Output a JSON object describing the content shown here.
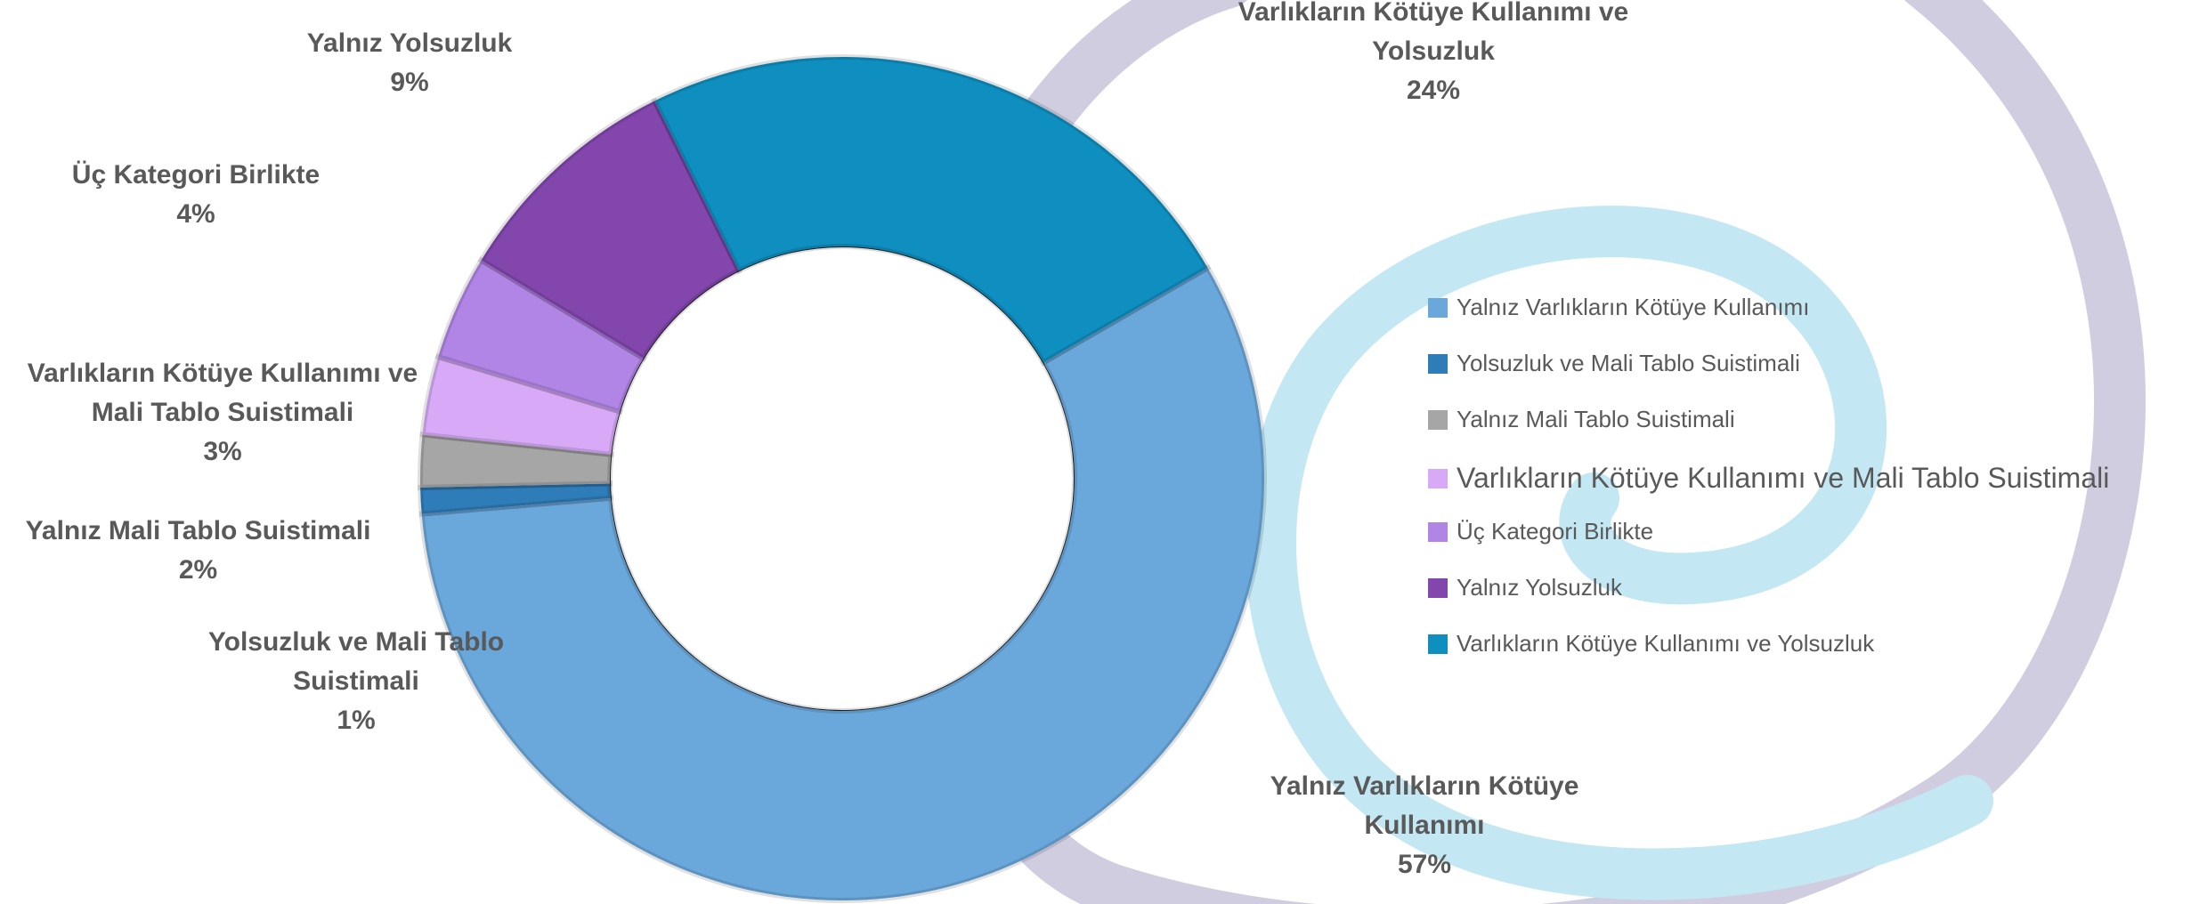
{
  "chart_data": {
    "type": "donut",
    "categories": [
      "Yalnız Varlıkların Kötüye Kullanımı",
      "Yolsuzluk ve Mali Tablo Suistimali",
      "Yalnız Mali Tablo Suistimali",
      "Varlıkların Kötüye Kullanımı ve Mali Tablo Suistimali",
      "Üç Kategori Birlikte",
      "Yalnız Yolsuzluk",
      "Varlıkların Kötüye Kullanımı ve Yolsuzluk"
    ],
    "values": [
      57,
      1,
      2,
      3,
      4,
      9,
      24
    ],
    "value_labels": [
      "57%",
      "1%",
      "2%",
      "3%",
      "4%",
      "9%",
      "24%"
    ],
    "colors": [
      "#6aa8db",
      "#2e7cb8",
      "#a6a6a6",
      "#d7a9f7",
      "#b185e6",
      "#8246ad",
      "#0e8fc0"
    ],
    "legend": "right"
  }
}
